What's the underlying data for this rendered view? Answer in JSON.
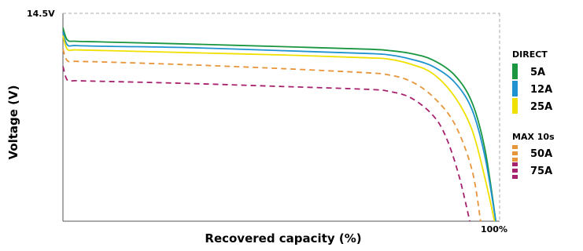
{
  "chart_data": {
    "type": "line",
    "title": "",
    "xlabel": "Recovered capacity (%)",
    "ylabel": "Voltage (V)",
    "x_tick_end": "100%",
    "y_tick_top": "14.5V",
    "xlim": [
      0,
      100
    ],
    "grid": false,
    "legend_position": "right",
    "legend_groups": [
      {
        "title": "DIRECT",
        "entries": [
          "5A",
          "12A",
          "25A"
        ]
      },
      {
        "title": "MAX 10s",
        "entries": [
          "50A",
          "75A"
        ]
      }
    ],
    "series": [
      {
        "name": "5A",
        "group": "DIRECT",
        "color": "#1a9641",
        "dash": false,
        "points": [
          [
            0,
            13.5
          ],
          [
            1,
            12.65
          ],
          [
            3,
            12.55
          ],
          [
            10,
            12.5
          ],
          [
            30,
            12.35
          ],
          [
            50,
            12.18
          ],
          [
            70,
            12.0
          ],
          [
            75,
            11.9
          ],
          [
            80,
            11.7
          ],
          [
            85,
            11.25
          ],
          [
            90,
            10.2
          ],
          [
            94,
            8.3
          ],
          [
            97,
            5.0
          ],
          [
            99.5,
            0
          ]
        ]
      },
      {
        "name": "12A",
        "group": "DIRECT",
        "color": "#1f93cf",
        "dash": false,
        "points": [
          [
            0,
            13.2
          ],
          [
            1,
            12.3
          ],
          [
            3,
            12.25
          ],
          [
            10,
            12.2
          ],
          [
            30,
            12.1
          ],
          [
            50,
            11.9
          ],
          [
            70,
            11.7
          ],
          [
            75,
            11.6
          ],
          [
            80,
            11.3
          ],
          [
            85,
            10.8
          ],
          [
            90,
            9.7
          ],
          [
            94,
            7.8
          ],
          [
            97,
            4.5
          ],
          [
            99.5,
            0
          ]
        ]
      },
      {
        "name": "25A",
        "group": "DIRECT",
        "color": "#f0e000",
        "dash": false,
        "points": [
          [
            0,
            12.95
          ],
          [
            1,
            12.0
          ],
          [
            3,
            11.95
          ],
          [
            10,
            11.9
          ],
          [
            30,
            11.75
          ],
          [
            50,
            11.6
          ],
          [
            70,
            11.4
          ],
          [
            75,
            11.3
          ],
          [
            80,
            10.95
          ],
          [
            85,
            10.3
          ],
          [
            90,
            8.7
          ],
          [
            94,
            6.4
          ],
          [
            97,
            3.0
          ],
          [
            99.2,
            0
          ]
        ]
      },
      {
        "name": "50A",
        "group": "MAX 10s",
        "color": "#e8953a",
        "dash": true,
        "points": [
          [
            0,
            12.0
          ],
          [
            1,
            11.2
          ],
          [
            3,
            11.15
          ],
          [
            10,
            11.1
          ],
          [
            30,
            10.9
          ],
          [
            50,
            10.65
          ],
          [
            70,
            10.35
          ],
          [
            75,
            10.2
          ],
          [
            80,
            9.75
          ],
          [
            85,
            8.7
          ],
          [
            90,
            6.8
          ],
          [
            94,
            3.6
          ],
          [
            96,
            0
          ]
        ]
      },
      {
        "name": "75A",
        "group": "MAX 10s",
        "color": "#a6216e",
        "dash": true,
        "points": [
          [
            0,
            10.8
          ],
          [
            1,
            9.85
          ],
          [
            3,
            9.8
          ],
          [
            10,
            9.75
          ],
          [
            30,
            9.6
          ],
          [
            50,
            9.4
          ],
          [
            70,
            9.2
          ],
          [
            75,
            9.05
          ],
          [
            80,
            8.6
          ],
          [
            85,
            7.4
          ],
          [
            88,
            5.9
          ],
          [
            91,
            3.2
          ],
          [
            93.5,
            0
          ]
        ]
      }
    ]
  }
}
